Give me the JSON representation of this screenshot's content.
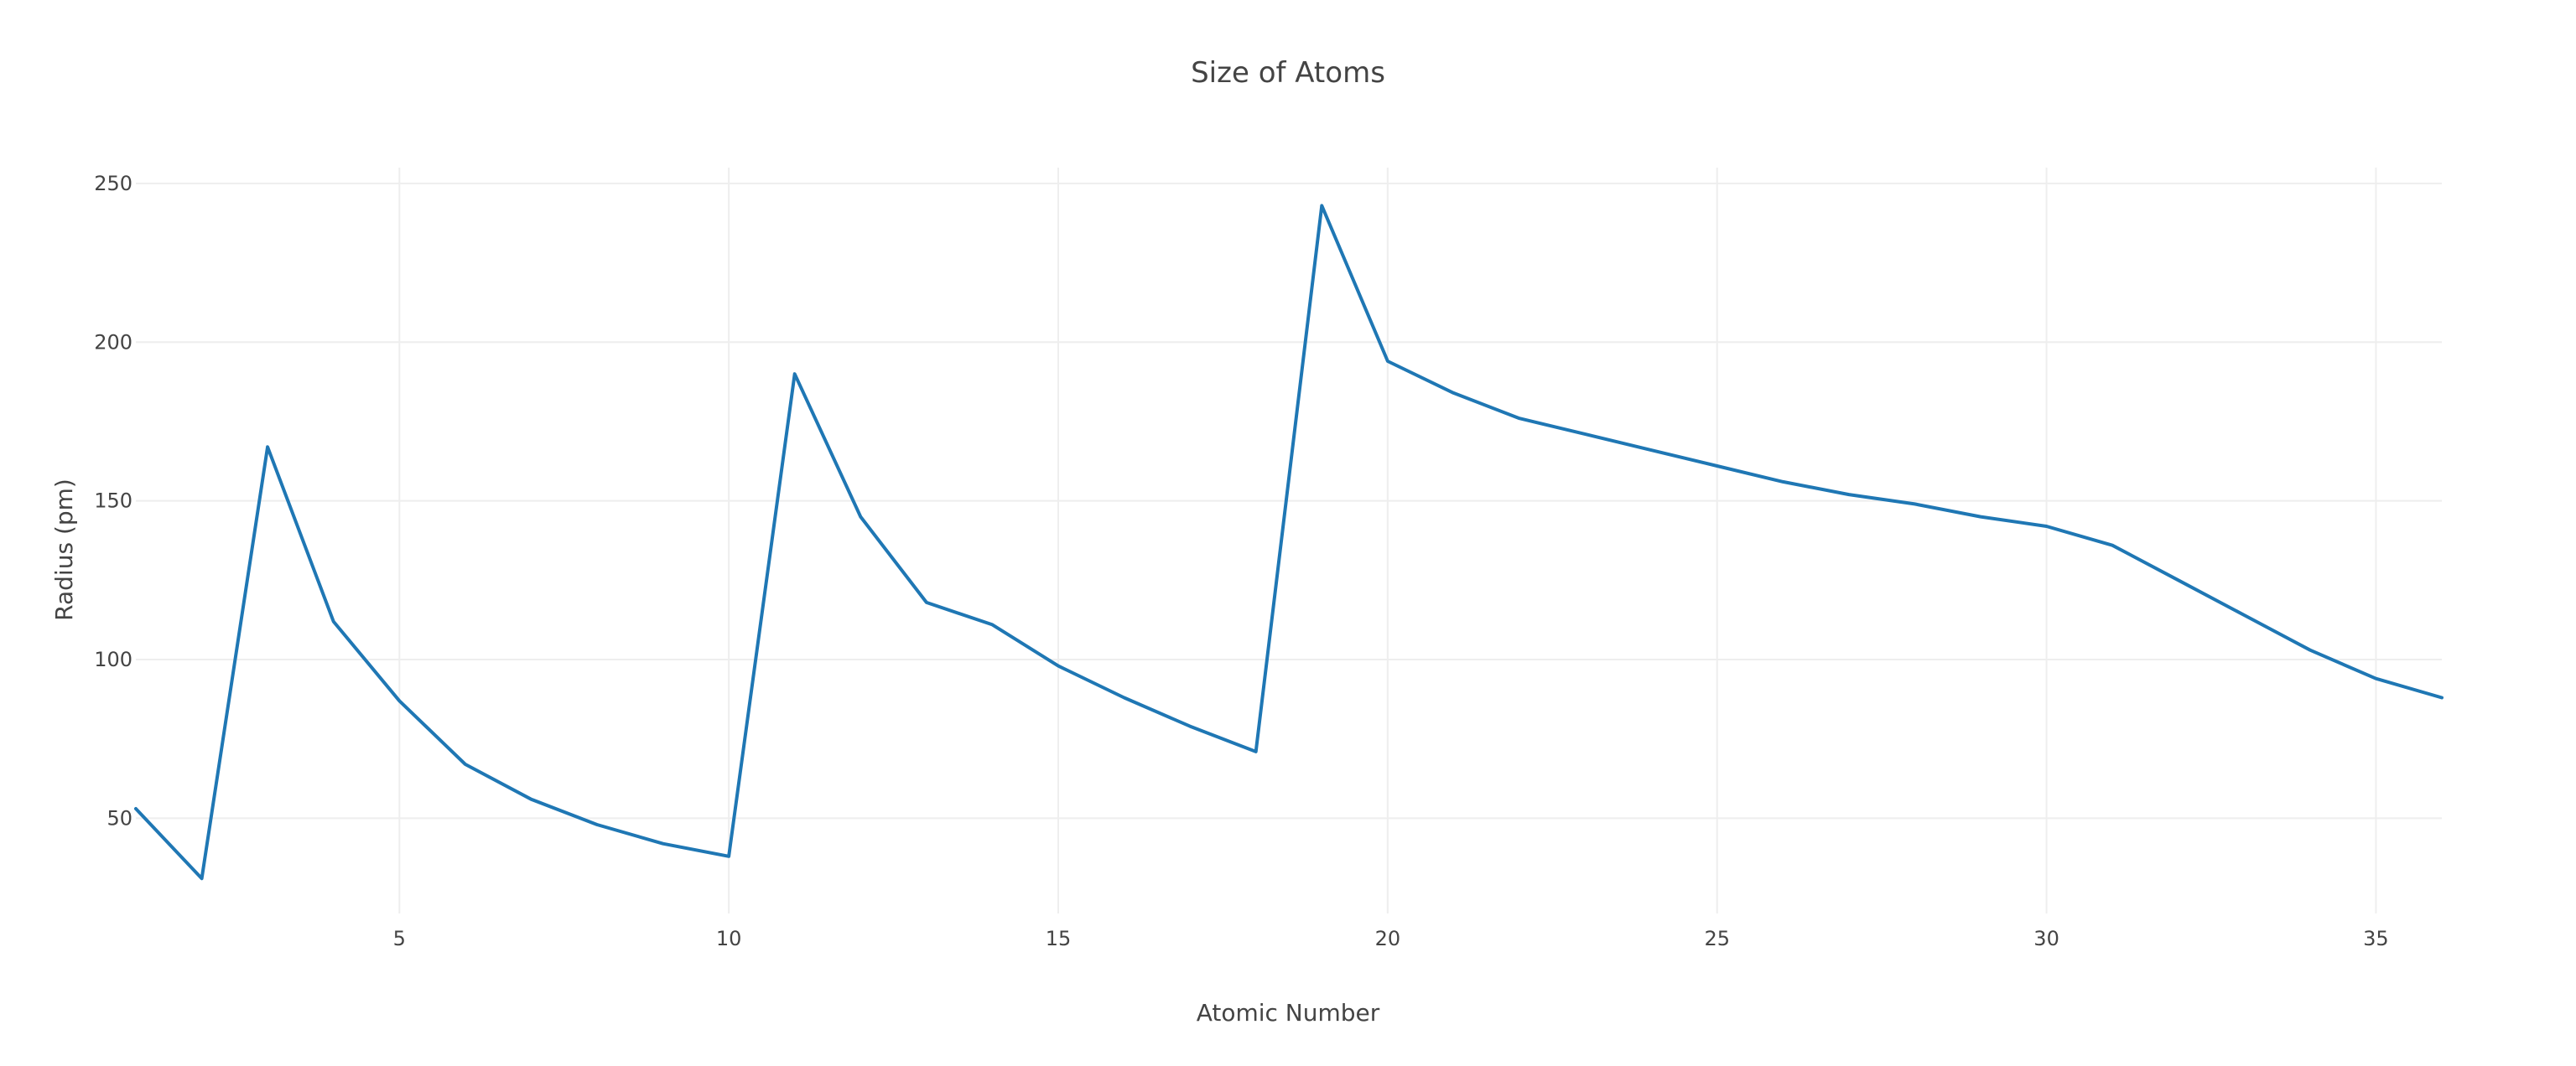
{
  "chart_data": {
    "type": "line",
    "title": "Size of Atoms",
    "xlabel": "Atomic Number",
    "ylabel": "Radius (pm)",
    "xlim": [
      1,
      36
    ],
    "ylim": [
      20,
      255
    ],
    "x_ticks": [
      5,
      10,
      15,
      20,
      25,
      30,
      35
    ],
    "y_ticks": [
      50,
      100,
      150,
      200,
      250
    ],
    "grid": true,
    "legend": "none",
    "series": [
      {
        "color": "#1f77b4",
        "x": [
          1,
          2,
          3,
          4,
          5,
          6,
          7,
          8,
          9,
          10,
          11,
          12,
          13,
          14,
          15,
          16,
          17,
          18,
          19,
          20,
          21,
          22,
          23,
          24,
          25,
          26,
          27,
          28,
          29,
          30,
          31,
          32,
          33,
          34,
          35,
          36
        ],
        "y": [
          53,
          31,
          167,
          112,
          87,
          67,
          56,
          48,
          42,
          38,
          190,
          145,
          118,
          111,
          98,
          88,
          79,
          71,
          243,
          194,
          184,
          176,
          171,
          166,
          161,
          156,
          152,
          149,
          145,
          142,
          136,
          125,
          114,
          103,
          94,
          88
        ]
      }
    ]
  }
}
